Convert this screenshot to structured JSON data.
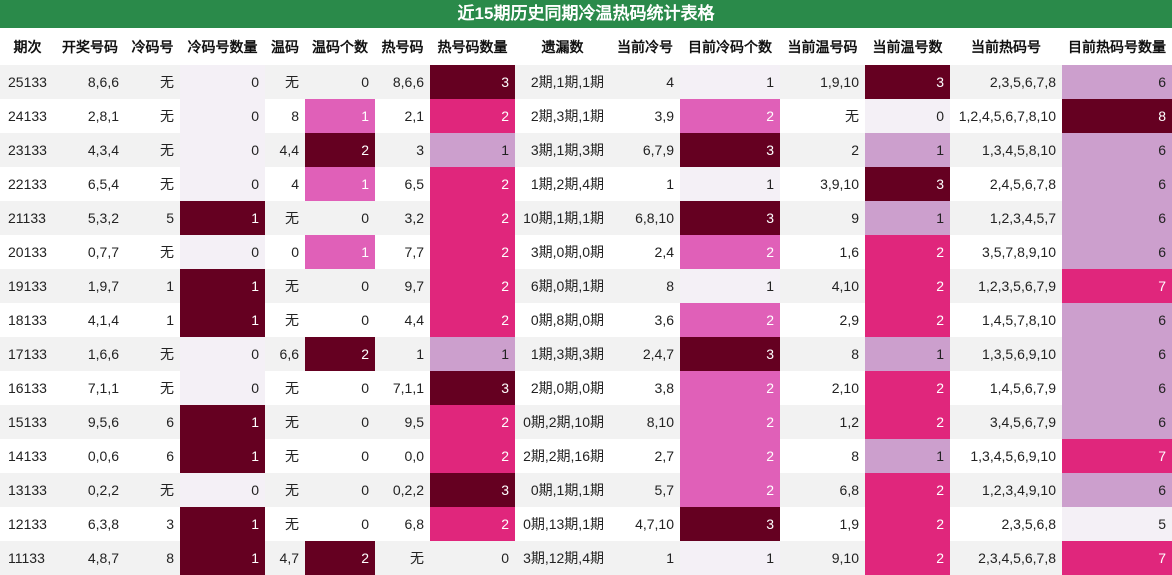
{
  "title": "近15期历史同期冷温热码统计表格",
  "headers": [
    "期次",
    "开奖号码",
    "冷码号",
    "冷码号数量",
    "温码",
    "温码个数",
    "热号码",
    "热号码数量",
    "遗漏数",
    "当前冷号",
    "目前冷码个数",
    "当前温号码",
    "当前温号数",
    "当前热码号",
    "目前热码号数量"
  ],
  "rows": [
    [
      "25133",
      "8,6,6",
      "无",
      "0",
      "无",
      "0",
      "8,6,6",
      "3",
      "2期,1期,1期",
      "4",
      "1",
      "1,9,10",
      "3",
      "2,3,5,6,7,8",
      "6"
    ],
    [
      "24133",
      "2,8,1",
      "无",
      "0",
      "8",
      "1",
      "2,1",
      "2",
      "2期,3期,1期",
      "3,9",
      "2",
      "无",
      "0",
      "1,2,4,5,6,7,8,10",
      "8"
    ],
    [
      "23133",
      "4,3,4",
      "无",
      "0",
      "4,4",
      "2",
      "3",
      "1",
      "3期,1期,3期",
      "6,7,9",
      "3",
      "2",
      "1",
      "1,3,4,5,8,10",
      "6"
    ],
    [
      "22133",
      "6,5,4",
      "无",
      "0",
      "4",
      "1",
      "6,5",
      "2",
      "1期,2期,4期",
      "1",
      "1",
      "3,9,10",
      "3",
      "2,4,5,6,7,8",
      "6"
    ],
    [
      "21133",
      "5,3,2",
      "5",
      "1",
      "无",
      "0",
      "3,2",
      "2",
      "10期,1期,1期",
      "6,8,10",
      "3",
      "9",
      "1",
      "1,2,3,4,5,7",
      "6"
    ],
    [
      "20133",
      "0,7,7",
      "无",
      "0",
      "0",
      "1",
      "7,7",
      "2",
      "3期,0期,0期",
      "2,4",
      "2",
      "1,6",
      "2",
      "3,5,7,8,9,10",
      "6"
    ],
    [
      "19133",
      "1,9,7",
      "1",
      "1",
      "无",
      "0",
      "9,7",
      "2",
      "6期,0期,1期",
      "8",
      "1",
      "4,10",
      "2",
      "1,2,3,5,6,7,9",
      "7"
    ],
    [
      "18133",
      "4,1,4",
      "1",
      "1",
      "无",
      "0",
      "4,4",
      "2",
      "0期,8期,0期",
      "3,6",
      "2",
      "2,9",
      "2",
      "1,4,5,7,8,10",
      "6"
    ],
    [
      "17133",
      "1,6,6",
      "无",
      "0",
      "6,6",
      "2",
      "1",
      "1",
      "1期,3期,3期",
      "2,4,7",
      "3",
      "8",
      "1",
      "1,3,5,6,9,10",
      "6"
    ],
    [
      "16133",
      "7,1,1",
      "无",
      "0",
      "无",
      "0",
      "7,1,1",
      "3",
      "2期,0期,0期",
      "3,8",
      "2",
      "2,10",
      "2",
      "1,4,5,6,7,9",
      "6"
    ],
    [
      "15133",
      "9,5,6",
      "6",
      "1",
      "无",
      "0",
      "9,5",
      "2",
      "0期,2期,10期",
      "8,10",
      "2",
      "1,2",
      "2",
      "3,4,5,6,7,9",
      "6"
    ],
    [
      "14133",
      "0,0,6",
      "6",
      "1",
      "无",
      "0",
      "0,0",
      "2",
      "2期,2期,16期",
      "2,7",
      "2",
      "8",
      "1",
      "1,3,4,5,6,9,10",
      "7"
    ],
    [
      "13133",
      "0,2,2",
      "无",
      "0",
      "无",
      "0",
      "0,2,2",
      "3",
      "0期,1期,1期",
      "5,7",
      "2",
      "6,8",
      "2",
      "1,2,3,4,9,10",
      "6"
    ],
    [
      "12133",
      "6,3,8",
      "3",
      "1",
      "无",
      "0",
      "6,8",
      "2",
      "0期,13期,1期",
      "4,7,10",
      "3",
      "1,9",
      "2",
      "2,3,5,6,8",
      "5"
    ],
    [
      "11133",
      "4,8,7",
      "8",
      "1",
      "4,7",
      "2",
      "无",
      "0",
      "3期,12期,4期",
      "1",
      "1",
      "9,10",
      "2",
      "2,3,4,5,6,7,8",
      "7"
    ]
  ],
  "colors": {
    "title_bg": "#2a8a4a",
    "level_dark": "#650021",
    "level_hot": "#e0267c",
    "level_pink": "#e060b8",
    "level_light": "#cc9fcd",
    "level_pale": "#f4f0f6"
  }
}
